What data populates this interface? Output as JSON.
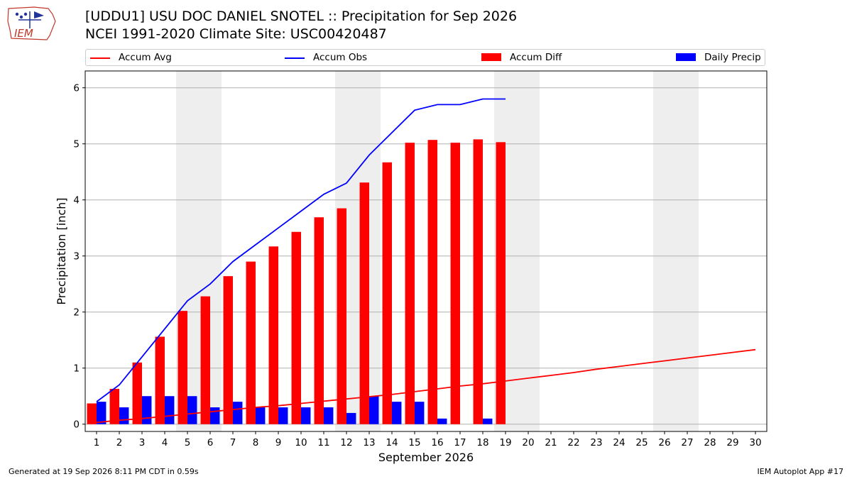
{
  "header": {
    "logo_text": "IEM",
    "title_line1": "[UDDU1] USU DOC DANIEL SNOTEL :: Precipitation for Sep 2026",
    "title_line2": "NCEI 1991-2020 Climate Site: USC00420487"
  },
  "legend": {
    "accum_avg": "Accum Avg",
    "accum_obs": "Accum Obs",
    "accum_diff": "Accum Diff",
    "daily_precip": "Daily Precip"
  },
  "colors": {
    "accum_avg": "#ff0000",
    "accum_obs": "#0000ff",
    "accum_diff": "#ff0000",
    "daily_precip": "#0000ff",
    "weekend_shade": "#eeeeee",
    "grid": "#b0b0b0"
  },
  "footer": {
    "generated": "Generated at 19 Sep 2026 8:11 PM CDT in 0.59s",
    "app": "IEM Autoplot App #17"
  },
  "chart_data": {
    "type": "bar",
    "xlabel": "September 2026",
    "ylabel": "Precipitation [inch]",
    "xlim": [
      0.5,
      30.5
    ],
    "ylim": [
      -0.13,
      6.3
    ],
    "yticks": [
      0,
      1,
      2,
      3,
      4,
      5,
      6
    ],
    "x": [
      1,
      2,
      3,
      4,
      5,
      6,
      7,
      8,
      9,
      10,
      11,
      12,
      13,
      14,
      15,
      16,
      17,
      18,
      19,
      20,
      21,
      22,
      23,
      24,
      25,
      26,
      27,
      28,
      29,
      30
    ],
    "weekend_days": [
      5,
      6,
      12,
      13,
      19,
      20,
      26,
      27
    ],
    "grid": true,
    "legend_position": "top",
    "series": [
      {
        "name": "Accum Avg",
        "kind": "line",
        "x": [
          1,
          2,
          3,
          4,
          5,
          6,
          7,
          8,
          9,
          10,
          11,
          12,
          13,
          14,
          15,
          16,
          17,
          18,
          19,
          20,
          21,
          22,
          23,
          24,
          25,
          26,
          27,
          28,
          29,
          30
        ],
        "values": [
          0.03,
          0.07,
          0.1,
          0.14,
          0.18,
          0.22,
          0.26,
          0.3,
          0.33,
          0.37,
          0.41,
          0.45,
          0.49,
          0.53,
          0.58,
          0.63,
          0.68,
          0.72,
          0.77,
          0.82,
          0.87,
          0.92,
          0.98,
          1.03,
          1.08,
          1.13,
          1.18,
          1.23,
          1.28,
          1.33
        ]
      },
      {
        "name": "Accum Obs",
        "kind": "line",
        "x": [
          1,
          2,
          3,
          4,
          5,
          6,
          7,
          8,
          9,
          10,
          11,
          12,
          13,
          14,
          15,
          16,
          17,
          18,
          19
        ],
        "values": [
          0.4,
          0.7,
          1.2,
          1.7,
          2.2,
          2.5,
          2.9,
          3.2,
          3.5,
          3.8,
          4.1,
          4.3,
          4.8,
          5.2,
          5.6,
          5.7,
          5.7,
          5.8,
          5.8
        ]
      },
      {
        "name": "Accum Diff",
        "kind": "bar",
        "x": [
          1,
          2,
          3,
          4,
          5,
          6,
          7,
          8,
          9,
          10,
          11,
          12,
          13,
          14,
          15,
          16,
          17,
          18,
          19
        ],
        "values": [
          0.37,
          0.63,
          1.1,
          1.56,
          2.02,
          2.28,
          2.64,
          2.9,
          3.17,
          3.43,
          3.69,
          3.85,
          4.31,
          4.67,
          5.02,
          5.07,
          5.02,
          5.08,
          5.03
        ]
      },
      {
        "name": "Daily Precip",
        "kind": "bar",
        "x": [
          1,
          2,
          3,
          4,
          5,
          6,
          7,
          8,
          9,
          10,
          11,
          12,
          13,
          14,
          15,
          16,
          17,
          18,
          19
        ],
        "values": [
          0.4,
          0.3,
          0.5,
          0.5,
          0.5,
          0.3,
          0.4,
          0.3,
          0.3,
          0.3,
          0.3,
          0.2,
          0.5,
          0.4,
          0.4,
          0.1,
          0.0,
          0.1,
          0.0
        ]
      }
    ]
  }
}
